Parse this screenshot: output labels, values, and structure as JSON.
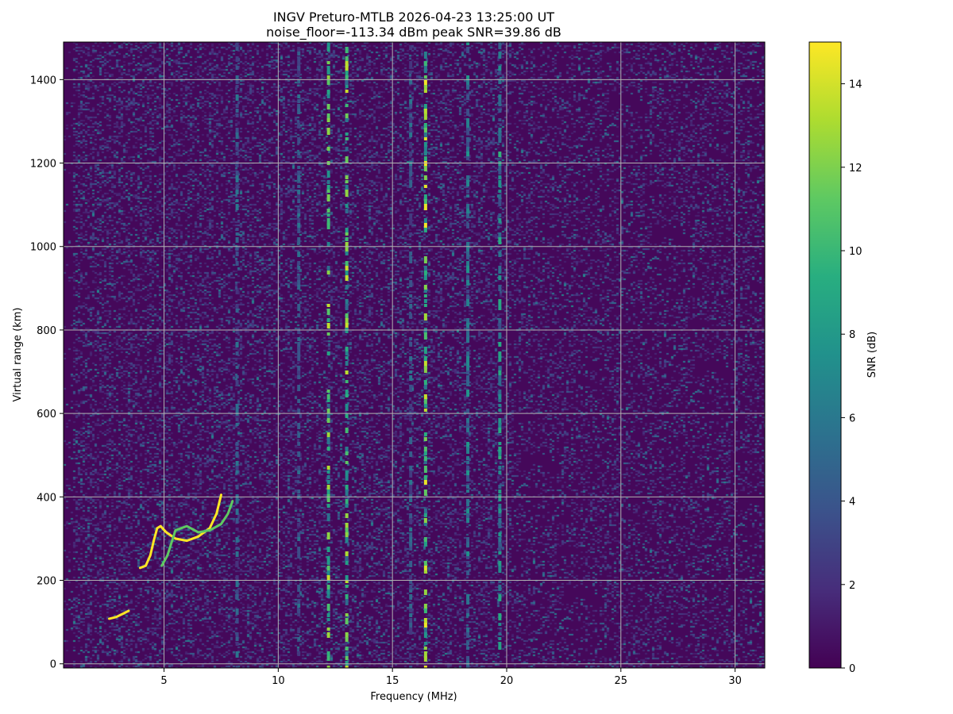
{
  "chart_data": {
    "type": "heatmap",
    "title": "INGV Preturo-MTLB 2026-04-23 13:25:00  UT",
    "subtitle": "noise_floor=-113.34 dBm peak SNR=39.86 dB",
    "xlabel": "Frequency (MHz)",
    "ylabel": "Virtual range (km)",
    "xlim": [
      0.6,
      31.3
    ],
    "ylim": [
      -10,
      1490
    ],
    "xticks": [
      5,
      10,
      15,
      20,
      25,
      30
    ],
    "yticks": [
      0,
      200,
      400,
      600,
      800,
      1000,
      1200,
      1400
    ],
    "grid": true,
    "colorbar": {
      "label": "SNR (dB)",
      "range": [
        0,
        15
      ],
      "ticks": [
        0,
        2,
        4,
        6,
        8,
        10,
        12,
        14
      ],
      "colormap": "viridis"
    },
    "traces": [
      {
        "x": [
          3.95,
          4.2,
          4.4,
          4.55,
          4.7,
          4.85,
          5.1,
          5.5,
          6.0,
          6.5,
          7.0,
          7.3,
          7.5
        ],
        "y": [
          230,
          235,
          260,
          295,
          325,
          330,
          315,
          300,
          295,
          305,
          325,
          360,
          405
        ]
      },
      {
        "x": [
          4.9,
          5.15,
          5.5,
          6.0,
          6.5,
          7.0,
          7.5,
          7.8,
          8.0
        ],
        "y": [
          235,
          260,
          320,
          330,
          315,
          320,
          335,
          360,
          390
        ]
      },
      {
        "x": [
          2.6,
          2.9,
          3.2,
          3.45
        ],
        "y": [
          108,
          112,
          120,
          127
        ]
      }
    ],
    "vertical_bands": [
      {
        "x": 12.2,
        "level": 14
      },
      {
        "x": 13.0,
        "level": 14
      },
      {
        "x": 16.45,
        "level": 15
      },
      {
        "x": 19.7,
        "level": 10
      },
      {
        "x": 18.3,
        "level": 8
      },
      {
        "x": 10.9,
        "level": 6
      },
      {
        "x": 15.8,
        "level": 6
      },
      {
        "x": 8.2,
        "level": 6
      }
    ]
  }
}
